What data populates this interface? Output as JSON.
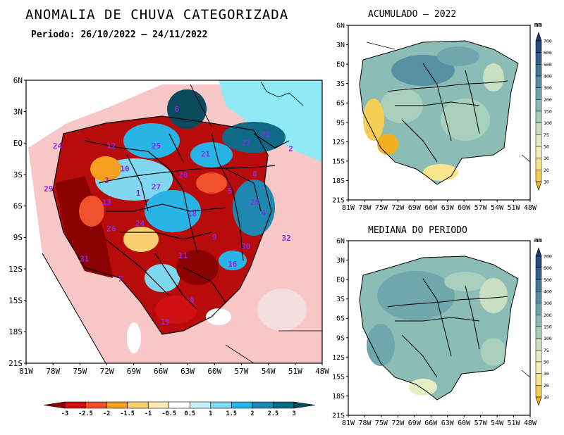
{
  "title": "ANOMALIA DE CHUVA CATEGORIZADA",
  "period": "Periodo: 26/10/2022 – 24/11/2022",
  "maps": {
    "main": {
      "lat_ticks": [
        "6N",
        "3N",
        "EQ",
        "3S",
        "6S",
        "9S",
        "12S",
        "15S",
        "18S",
        "21S"
      ],
      "lon_ticks": [
        "81W",
        "78W",
        "75W",
        "72W",
        "69W",
        "66W",
        "63W",
        "60W",
        "57W",
        "54W",
        "51W",
        "48W"
      ],
      "basin_numbers": [
        {
          "n": "6",
          "lon": -64.2,
          "lat": 3.0
        },
        {
          "n": "22",
          "lon": -54.3,
          "lat": 0.6
        },
        {
          "n": "23",
          "lon": -56.5,
          "lat": -0.2
        },
        {
          "n": "12",
          "lon": -71.5,
          "lat": -0.5
        },
        {
          "n": "24",
          "lon": -77.5,
          "lat": -0.5
        },
        {
          "n": "25",
          "lon": -66.5,
          "lat": -0.5
        },
        {
          "n": "21",
          "lon": -61.0,
          "lat": -1.3
        },
        {
          "n": "2",
          "lon": -51.5,
          "lat": -0.8
        },
        {
          "n": "10",
          "lon": -70.0,
          "lat": -2.7
        },
        {
          "n": "20",
          "lon": -63.5,
          "lat": -3.3
        },
        {
          "n": "8",
          "lon": -55.5,
          "lat": -3.2
        },
        {
          "n": "3",
          "lon": -72.0,
          "lat": -3.8
        },
        {
          "n": "27",
          "lon": -66.5,
          "lat": -4.4
        },
        {
          "n": "1",
          "lon": -68.5,
          "lat": -5.0
        },
        {
          "n": "29",
          "lon": -78.5,
          "lat": -4.6
        },
        {
          "n": "5",
          "lon": -58.3,
          "lat": -4.8
        },
        {
          "n": "13",
          "lon": -72.0,
          "lat": -5.9
        },
        {
          "n": "28",
          "lon": -55.5,
          "lat": -5.9
        },
        {
          "n": "18",
          "lon": -62.5,
          "lat": -7.0
        },
        {
          "n": "4",
          "lon": -54.5,
          "lat": -6.9
        },
        {
          "n": "26",
          "lon": -71.5,
          "lat": -8.4
        },
        {
          "n": "24",
          "lon": -68.3,
          "lat": -7.9
        },
        {
          "n": "32",
          "lon": -52.0,
          "lat": -9.3
        },
        {
          "n": "9",
          "lon": -60.0,
          "lat": -9.2
        },
        {
          "n": "30",
          "lon": -56.5,
          "lat": -10.1
        },
        {
          "n": "31",
          "lon": -74.5,
          "lat": -11.3
        },
        {
          "n": "11",
          "lon": -63.5,
          "lat": -11.0
        },
        {
          "n": "16",
          "lon": -58.0,
          "lat": -11.8
        },
        {
          "n": "7",
          "lon": -70.5,
          "lat": -13.2
        },
        {
          "n": "8",
          "lon": -62.5,
          "lat": -15.2
        },
        {
          "n": "19",
          "lon": -65.5,
          "lat": -17.3
        }
      ]
    },
    "top_right": {
      "title": "ACUMULADO – 2022",
      "lat_ticks": [
        "6N",
        "3N",
        "EQ",
        "3S",
        "6S",
        "9S",
        "12S",
        "15S",
        "18S",
        "21S"
      ],
      "lon_ticks": [
        "81W",
        "78W",
        "75W",
        "72W",
        "69W",
        "66W",
        "63W",
        "60W",
        "57W",
        "54W",
        "51W",
        "48W"
      ]
    },
    "bottom_right": {
      "title": "MEDIANA DO PERIODO",
      "lat_ticks": [
        "6N",
        "3N",
        "EQ",
        "3S",
        "6S",
        "9S",
        "12S",
        "15S",
        "18S",
        "21S"
      ],
      "lon_ticks": [
        "81W",
        "78W",
        "75W",
        "72W",
        "69W",
        "66W",
        "63W",
        "60W",
        "57W",
        "54W",
        "51W",
        "48W"
      ]
    }
  },
  "anomaly_legend": {
    "labels": [
      "-3",
      "-2.5",
      "-2",
      "-1.5",
      "-1",
      "-0.5",
      "0.5",
      "1",
      "1.5",
      "2",
      "2.5",
      "3"
    ],
    "colors": [
      "#8b0000",
      "#d01010",
      "#f0502a",
      "#f5a020",
      "#f9cf70",
      "#fbeab5",
      "#ffffff",
      "#c6f0fa",
      "#7fd8f0",
      "#29b4e6",
      "#1e88b0",
      "#0f6a86",
      "#0a4a5c"
    ]
  },
  "precip_legend": {
    "unit": "mm",
    "labels": [
      "10",
      "20",
      "30",
      "50",
      "75",
      "100",
      "150",
      "200",
      "300",
      "400",
      "500",
      "600",
      "700"
    ],
    "colors": [
      "#f2b01e",
      "#f5cf55",
      "#f8e58c",
      "#f4f1b8",
      "#e4edc4",
      "#c9e0c2",
      "#a9cfbd",
      "#8cbcb6",
      "#6fa7ad",
      "#5890a3",
      "#457997",
      "#34618a",
      "#234b7c",
      "#1a3a70"
    ]
  }
}
